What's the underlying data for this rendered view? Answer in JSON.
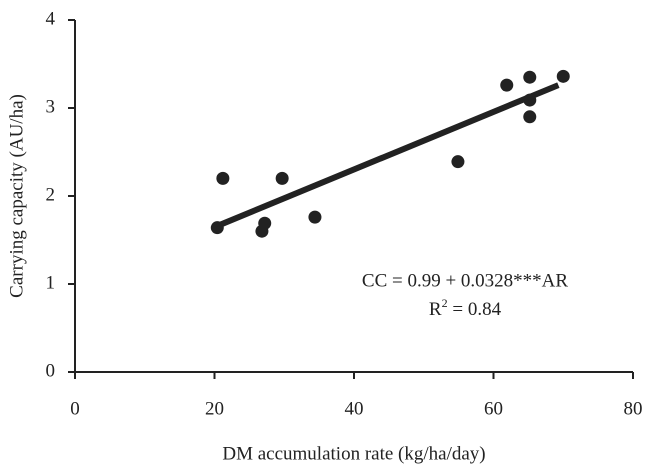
{
  "chart_data": {
    "type": "scatter",
    "x_label": "DM accumulation rate (kg/ha/day)",
    "y_label": "Carrying capacity (AU/ha)",
    "xlim": [
      0,
      80
    ],
    "xticks": [
      0,
      20,
      40,
      60,
      80
    ],
    "ylim": [
      0,
      4
    ],
    "yticks": [
      0,
      1,
      2,
      3,
      4
    ],
    "grid": false,
    "series": [
      {
        "color": "#222222",
        "x": [
          20.4,
          21.2,
          26.8,
          27.2,
          29.7,
          34.4,
          54.9,
          61.9,
          65.2,
          65.2,
          65.2,
          70.0
        ],
        "values": [
          1.64,
          2.2,
          1.6,
          1.69,
          2.2,
          1.76,
          2.39,
          3.26,
          3.35,
          3.09,
          2.9,
          3.36
        ]
      }
    ],
    "fit_line": {
      "color": "#222222",
      "x": [
        20.4,
        69.3
      ],
      "values": [
        1.66,
        3.26
      ]
    },
    "annotation": {
      "equation": "CC = 0.99 + 0.0328***AR",
      "r_squared": {
        "base": "R",
        "exp": "2",
        "rest": " = 0.84"
      }
    }
  }
}
